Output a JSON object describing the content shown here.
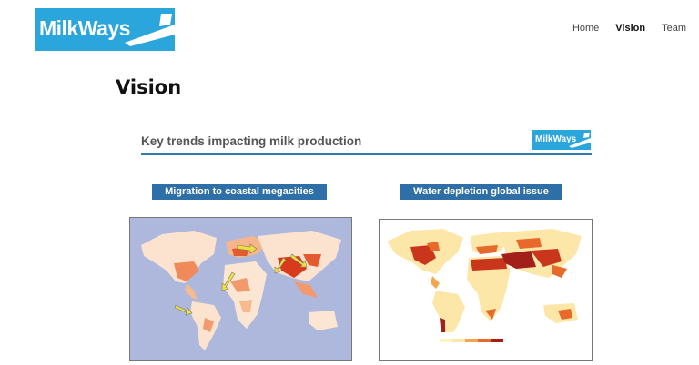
{
  "brand": {
    "name": "MilkWays",
    "color": "#2aa6dc"
  },
  "nav": {
    "items": [
      "Home",
      "Vision",
      "Team"
    ],
    "active": "Vision"
  },
  "page": {
    "title": "Vision"
  },
  "slide": {
    "title": "Key trends impacting milk production",
    "logo": "MilkWays",
    "panels": [
      {
        "caption": "Migration to coastal megacities"
      },
      {
        "caption": "Water depletion global issue"
      }
    ]
  },
  "colors": {
    "caption_bg": "#2e6fa7",
    "rule": "#2d7fb0",
    "ocean": "#aeb8dd"
  }
}
